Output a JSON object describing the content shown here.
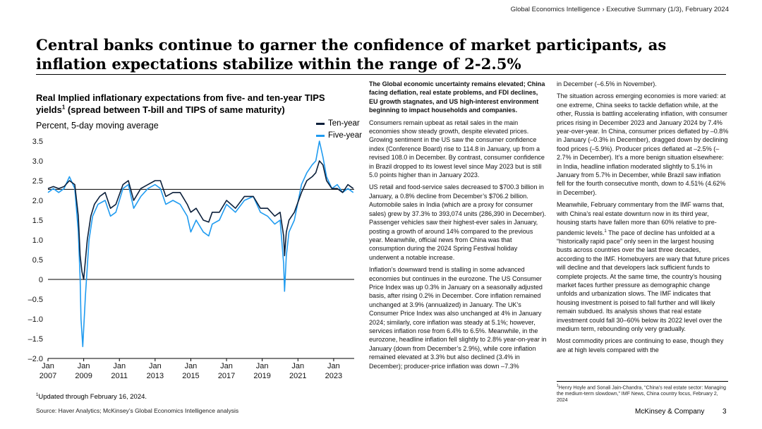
{
  "header": {
    "breadcrumb": "Global Economics Intelligence › Executive Summary (1/3), February 2024",
    "title": "Central banks continue to garner the confidence of market participants, as inflation expectations stabilize within the range of 2-2.5%"
  },
  "chart": {
    "title": "Real Implied inflationary expectations from five- and ten-year TIPS yields",
    "title_sup": "1",
    "title_rest": " (spread between T-bill and TIPS of same maturity)",
    "subtitle": "Percent, 5-day moving average",
    "footnote_marker": "1",
    "footnote": "Updated through February 16, 2024."
  },
  "chart_data": {
    "type": "line",
    "title": "Real Implied inflationary expectations from five- and ten-year TIPS yields (spread between T-bill and TIPS of same maturity)",
    "ylabel": "Percent, 5-day moving average",
    "ylim": [
      -2.0,
      3.5
    ],
    "yticks": [
      3.5,
      3.0,
      2.5,
      2.0,
      1.5,
      1.0,
      0.5,
      0,
      -0.5,
      -1.0,
      -1.5,
      -2.0
    ],
    "ytick_labels": [
      "3.5",
      "3.0",
      "2.5",
      "2.0",
      "1.5",
      "1.0",
      "0.5",
      "0",
      "–0.5",
      "–1.0",
      "–1.5",
      "–2.0"
    ],
    "xlim": [
      2007.0,
      2024.15
    ],
    "xticks": [
      2007,
      2009,
      2011,
      2013,
      2015,
      2017,
      2019,
      2021,
      2023
    ],
    "xtick_labels": [
      [
        "Jan",
        "2007"
      ],
      [
        "Jan",
        "2009"
      ],
      [
        "Jan",
        "2011"
      ],
      [
        "Jan",
        "2013"
      ],
      [
        "Jan",
        "2015"
      ],
      [
        "Jan",
        "2017"
      ],
      [
        "Jan",
        "2019"
      ],
      [
        "Jan",
        "2021"
      ],
      [
        "Jan",
        "2023"
      ]
    ],
    "reference_line": 2.28,
    "legend": [
      {
        "name": "Ten-year",
        "color": "#0b1f3a"
      },
      {
        "name": "Five-year",
        "color": "#1f9bf0"
      }
    ],
    "series": [
      {
        "name": "Ten-year",
        "color": "#0b1f3a",
        "x": [
          2007.0,
          2007.3,
          2007.6,
          2007.9,
          2008.2,
          2008.5,
          2008.7,
          2008.8,
          2008.9,
          2009.0,
          2009.2,
          2009.4,
          2009.6,
          2009.9,
          2010.2,
          2010.5,
          2010.8,
          2011.2,
          2011.5,
          2011.8,
          2012.2,
          2012.6,
          2013.0,
          2013.3,
          2013.6,
          2014.0,
          2014.4,
          2014.8,
          2015.0,
          2015.3,
          2015.7,
          2016.0,
          2016.2,
          2016.6,
          2017.0,
          2017.5,
          2018.0,
          2018.5,
          2018.9,
          2019.3,
          2019.7,
          2020.0,
          2020.2,
          2020.25,
          2020.35,
          2020.5,
          2020.8,
          2021.2,
          2021.5,
          2021.8,
          2022.0,
          2022.2,
          2022.4,
          2022.6,
          2022.9,
          2023.2,
          2023.5,
          2023.8,
          2024.1
        ],
        "values": [
          2.3,
          2.35,
          2.3,
          2.35,
          2.5,
          2.4,
          1.6,
          0.6,
          0.2,
          0.0,
          1.0,
          1.6,
          1.9,
          2.1,
          2.2,
          1.8,
          1.9,
          2.4,
          2.5,
          2.0,
          2.3,
          2.4,
          2.5,
          2.5,
          2.1,
          2.2,
          2.2,
          1.9,
          1.7,
          1.8,
          1.5,
          1.45,
          1.7,
          1.7,
          2.0,
          1.8,
          2.1,
          2.1,
          1.8,
          1.8,
          1.6,
          1.7,
          1.1,
          0.6,
          1.2,
          1.5,
          1.7,
          2.2,
          2.5,
          2.6,
          2.7,
          3.0,
          2.9,
          2.5,
          2.3,
          2.3,
          2.2,
          2.4,
          2.3
        ]
      },
      {
        "name": "Five-year",
        "color": "#1f9bf0",
        "x": [
          2007.0,
          2007.3,
          2007.6,
          2007.9,
          2008.2,
          2008.5,
          2008.7,
          2008.8,
          2008.85,
          2008.95,
          2009.1,
          2009.3,
          2009.5,
          2009.8,
          2010.2,
          2010.5,
          2010.8,
          2011.2,
          2011.5,
          2011.8,
          2012.2,
          2012.6,
          2013.0,
          2013.3,
          2013.6,
          2014.0,
          2014.4,
          2014.8,
          2015.0,
          2015.3,
          2015.7,
          2016.0,
          2016.2,
          2016.6,
          2017.0,
          2017.5,
          2018.0,
          2018.5,
          2018.9,
          2019.3,
          2019.7,
          2020.0,
          2020.2,
          2020.25,
          2020.35,
          2020.5,
          2020.8,
          2021.2,
          2021.5,
          2021.8,
          2022.0,
          2022.2,
          2022.4,
          2022.6,
          2022.9,
          2023.2,
          2023.5,
          2023.8,
          2024.1
        ],
        "values": [
          2.2,
          2.3,
          2.2,
          2.3,
          2.6,
          2.3,
          1.2,
          0.0,
          -1.0,
          -1.7,
          -0.4,
          1.0,
          1.6,
          1.9,
          2.0,
          1.6,
          1.7,
          2.3,
          2.4,
          1.8,
          2.1,
          2.3,
          2.4,
          2.3,
          1.9,
          2.0,
          1.9,
          1.6,
          1.2,
          1.5,
          1.2,
          1.1,
          1.4,
          1.5,
          1.9,
          1.7,
          2.0,
          2.1,
          1.7,
          1.6,
          1.4,
          1.5,
          0.4,
          -0.3,
          0.6,
          1.2,
          1.5,
          2.4,
          2.7,
          2.9,
          3.0,
          3.5,
          3.1,
          2.6,
          2.3,
          2.4,
          2.2,
          2.3,
          2.2
        ]
      }
    ]
  },
  "body": {
    "col1": {
      "lead": "The Global economic uncertainty remains elevated; China facing deflation, real estate problems, and FDI declines, EU growth stagnates, and US high-interest environment beginning to impact households and companies.",
      "p1": "Consumers remain upbeat as retail sales in the main economies show steady growth, despite elevated prices. Growing sentiment in the US saw the consumer confidence index (Conference Board) rise to 114.8 in January, up from a revised 108.0 in December. By contrast, consumer confidence in Brazil dropped to its lowest level since May 2023 but is still 5.0 points higher than in January 2023.",
      "p2": "US retail and food-service sales decreased to $700.3 billion in January, a 0.8% decline from December’s $706.2 billion. Automobile sales in India (which are a proxy for consumer sales) grew by 37.3% to 393,074 units (286,390 in December). Passenger vehicles saw their highest-ever sales in January, posting a growth of around 14% compared to the previous year. Meanwhile, official news from China was that consumption during the 2024 Spring Festival holiday underwent a notable increase.",
      "p3": "Inflation’s downward trend is stalling in some advanced economies but continues in the eurozone. The US Consumer Price Index was up 0.3% in January on a seasonally adjusted basis, after rising 0.2% in December. Core inflation remained unchanged at 3.9% (annualized) in January. The UK’s Consumer Price Index was also unchanged at 4% in January 2024; similarly, core inflation was steady at 5.1%; however, services inflation rose from 6.4% to 6.5%. Meanwhile, in the eurozone, headline inflation fell slightly to 2.8% year-on-year in January (down from December’s 2.9%), while core inflation remained elevated at 3.3% but also declined (3.4% in December); producer-price inflation was down –7.3%"
    },
    "col2": {
      "p0": "in December (–6.5% in November).",
      "p1": "The situation across emerging economies is more varied: at one extreme, China seeks to tackle deflation while, at the other, Russia is battling accelerating inflation, with consumer prices rising in December 2023 and January 2024 by 7.4% year-over-year. In China, consumer prices deflated by –0.8% in January (–0.3% in December), dragged down by declining food prices (–5.9%). Producer prices deflated at –2.5% (–2.7% in December). It’s a more benign situation elsewhere: in India, headline inflation moderated slightly to 5.1% in January from 5.7% in December, while Brazil saw inflation fell for the fourth consecutive month, down to 4.51% (4.62% in December).",
      "p2": "Meanwhile, February commentary from the IMF warns that, with China’s real estate downturn now in its third year, housing starts have fallen more than 60% relative to pre-pandemic levels.",
      "p2_sup": "1",
      "p2b": " The pace of decline has unfolded at a “historically rapid pace” only seen in the largest housing busts across countries over the last three decades, according to the IMF. Homebuyers are wary that future prices will decline and that developers lack sufficient funds to complete projects. At the same time, the country’s housing market faces further pressure as demographic change unfolds and urbanization slows. The IMF indicates that housing investment is poised to fall further and will likely remain subdued. Its analysis shows that real estate investment could fall 30–60% below its 2022 level over the medium term, rebounding only very gradually.",
      "p3": "Most commodity prices are continuing to ease, though they are at high levels compared with the"
    },
    "footnote_marker": "1",
    "footnote": "Henry Hoyle and Sonali Jain-Chandra, “China’s real estate sector: Managing the medium-term slowdown,” IMF News, China country focus, February 2, 2024"
  },
  "footer": {
    "source": "Source: Haver Analytics; McKinsey’s Global Economics Intelligence analysis",
    "brand": "McKinsey & Company",
    "page": "3"
  }
}
